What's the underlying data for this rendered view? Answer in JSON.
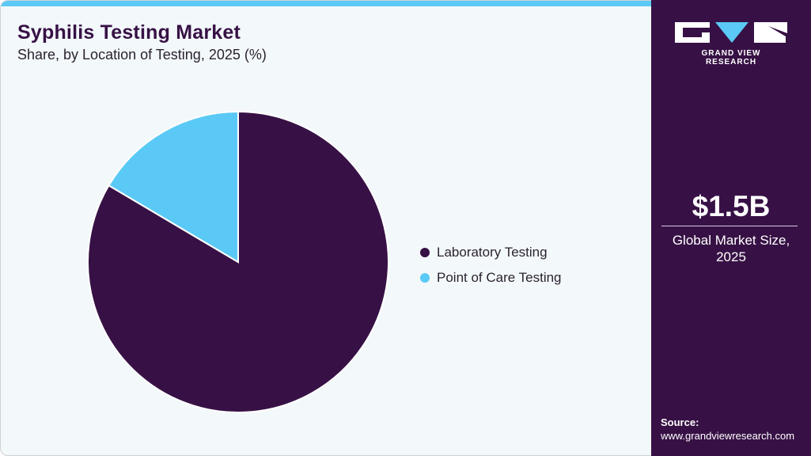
{
  "header": {
    "title": "Syphilis Testing Market",
    "subtitle": "Share, by Location of Testing, 2025 (%)"
  },
  "legend": [
    {
      "label": "Laboratory Testing",
      "color": "#371145"
    },
    {
      "label": "Point of Care Testing",
      "color": "#5bc9f5"
    }
  ],
  "sidebar": {
    "brand": "GRAND VIEW RESEARCH",
    "market_size": "$1.5B",
    "market_label_line1": "Global Market Size,",
    "market_label_line2": "2025",
    "source_heading": "Source:",
    "source_url": "www.grandviewresearch.com"
  },
  "colors": {
    "primary": "#371145",
    "accent": "#5bc9f5",
    "background": "#f3f8fb"
  },
  "chart_data": {
    "type": "pie",
    "title": "Syphilis Testing Market",
    "subtitle": "Share, by Location of Testing, 2025 (%)",
    "categories": [
      "Laboratory Testing",
      "Point of Care Testing"
    ],
    "values": [
      83.5,
      16.5
    ],
    "colors": [
      "#371145",
      "#5bc9f5"
    ],
    "legend_position": "right",
    "start_angle": "12 o'clock, Point of Care counter-clockwise"
  }
}
